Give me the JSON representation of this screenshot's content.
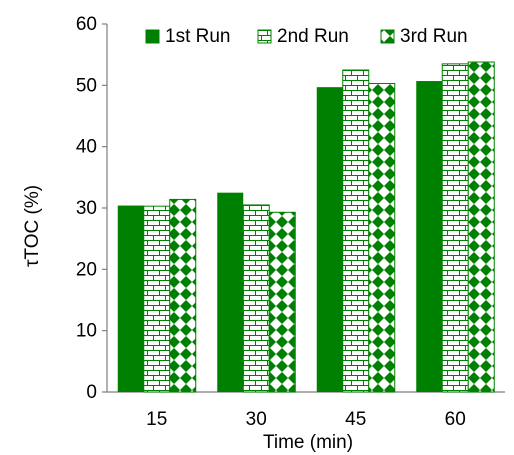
{
  "chart_data": {
    "type": "bar",
    "title": "",
    "xlabel": "Time (min)",
    "ylabel": "τTOC (%)",
    "categories": [
      "15",
      "30",
      "45",
      "60"
    ],
    "ylim": [
      0,
      60
    ],
    "yticks": [
      0,
      10,
      20,
      30,
      40,
      50,
      60
    ],
    "grid": false,
    "legend_position": "top-right",
    "series": [
      {
        "name": "1st Run",
        "values": [
          30.4,
          32.5,
          49.7,
          50.7
        ],
        "pattern": "solid",
        "color": "#008000"
      },
      {
        "name": "2nd Run",
        "values": [
          30.3,
          30.5,
          52.5,
          53.5
        ],
        "pattern": "brick",
        "color": "#008000"
      },
      {
        "name": "3rd Run",
        "values": [
          31.4,
          29.3,
          50.3,
          53.8
        ],
        "pattern": "diamond",
        "color": "#008000"
      }
    ]
  }
}
